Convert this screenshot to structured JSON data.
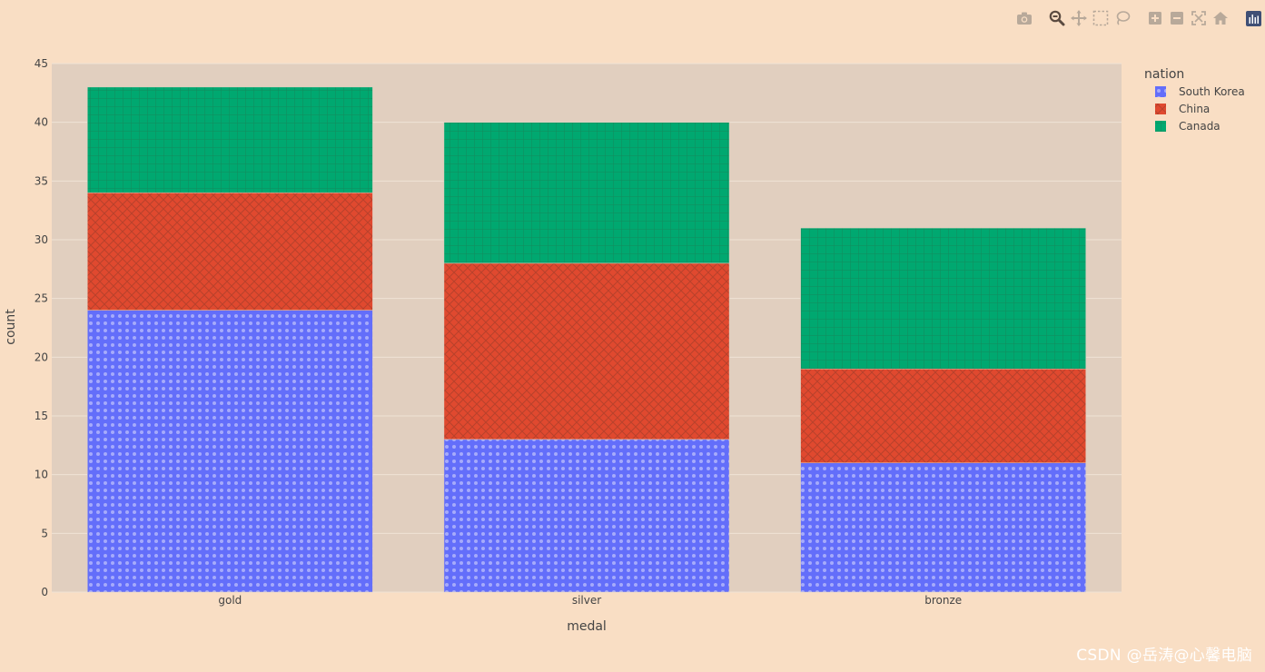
{
  "watermark": "CSDN @岳涛@心馨电脑",
  "modebar": [
    {
      "name": "camera-icon"
    },
    {
      "name": "zoom-icon"
    },
    {
      "name": "pan-icon"
    },
    {
      "name": "box-select-icon"
    },
    {
      "name": "lasso-select-icon"
    },
    {
      "name": "zoom-in-icon"
    },
    {
      "name": "zoom-out-icon"
    },
    {
      "name": "autoscale-icon"
    },
    {
      "name": "reset-axes-icon"
    },
    {
      "name": "plotly-logo-icon"
    }
  ],
  "colors": {
    "paper": "#f9dec4",
    "plot": "#e1cfbf",
    "grid": "#f0e3d6",
    "South Korea": "#636efa",
    "China": "#ef553b",
    "Canada": "#00cc96"
  },
  "chart_data": {
    "type": "bar",
    "barmode": "stack",
    "categories": [
      "gold",
      "silver",
      "bronze"
    ],
    "series": [
      {
        "name": "South Korea",
        "values": [
          24,
          13,
          11
        ],
        "pattern": "dots"
      },
      {
        "name": "China",
        "values": [
          10,
          15,
          8
        ],
        "pattern": "crosshatch"
      },
      {
        "name": "Canada",
        "values": [
          9,
          12,
          12
        ],
        "pattern": "grid"
      }
    ],
    "xlabel": "medal",
    "ylabel": "count",
    "ylim": [
      0,
      45
    ],
    "yticks": [
      0,
      5,
      10,
      15,
      20,
      25,
      30,
      35,
      40,
      45
    ],
    "legend_title": "nation",
    "legend_position": "top-right",
    "grid": true
  }
}
